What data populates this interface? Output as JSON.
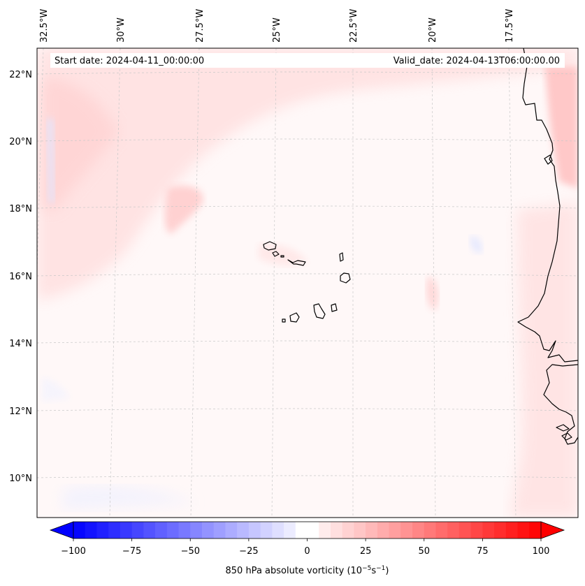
{
  "map": {
    "start_date_label": "Start date: 2024-04-11_00:00:00",
    "valid_date_label": "Valid_date: 2024-04-13T06:00:00.00",
    "lon_labels": [
      "32.5°W",
      "30°W",
      "27.5°W",
      "25°W",
      "22.5°W",
      "20°W",
      "17.5°W"
    ],
    "lat_labels": [
      "22°N",
      "20°N",
      "18°N",
      "16°N",
      "14°N",
      "12°N",
      "10°N"
    ],
    "field": "850 hPa absolute vorticity",
    "region": "Cabo Verde islands and West African coast"
  },
  "colorbar": {
    "label_text": "850 hPa absolute vorticity (10",
    "label_exp1": "−5",
    "label_mid": "s",
    "label_exp2": "−1",
    "label_close": ")",
    "ticks": [
      "−100",
      "−75",
      "−50",
      "−25",
      "0",
      "25",
      "50",
      "75",
      "100"
    ],
    "min": -100,
    "max": 100,
    "levels": 40,
    "low_color": "#0000ff",
    "mid_color": "#ffffff",
    "high_color": "#ff0000"
  }
}
